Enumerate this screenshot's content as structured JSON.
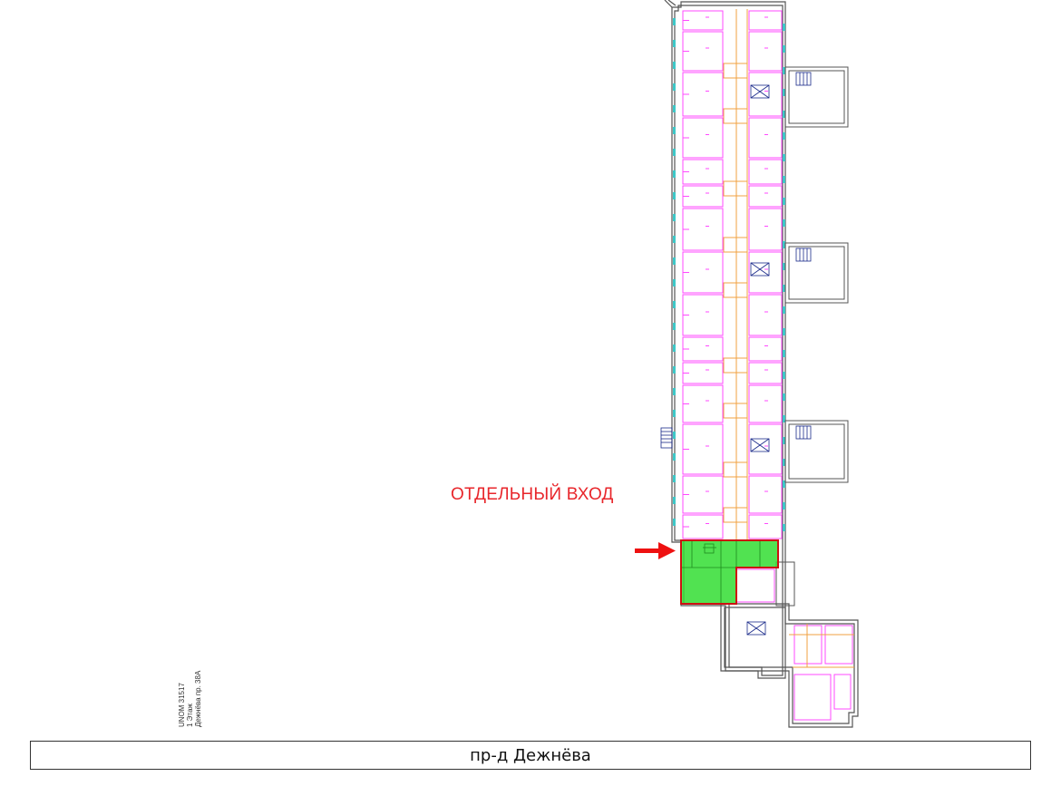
{
  "callout": {
    "text": "ОТДЕЛЬНЫЙ ВХОД"
  },
  "stamp": {
    "lines": [
      "UNOM 31517",
      "1 Этаж",
      "Дежнёва пр. 38А"
    ]
  },
  "street": {
    "label": "пр-д Дежнёва"
  },
  "plan": {
    "colors": {
      "wall": "#555555",
      "room": "#ff49ff",
      "partition": "#f0a040",
      "window": "#3ec8c8",
      "highlight": "#33dd33",
      "highlight_border": "#cc1111",
      "arrow": "#ee1111",
      "stair": "#1a2a8a"
    }
  }
}
